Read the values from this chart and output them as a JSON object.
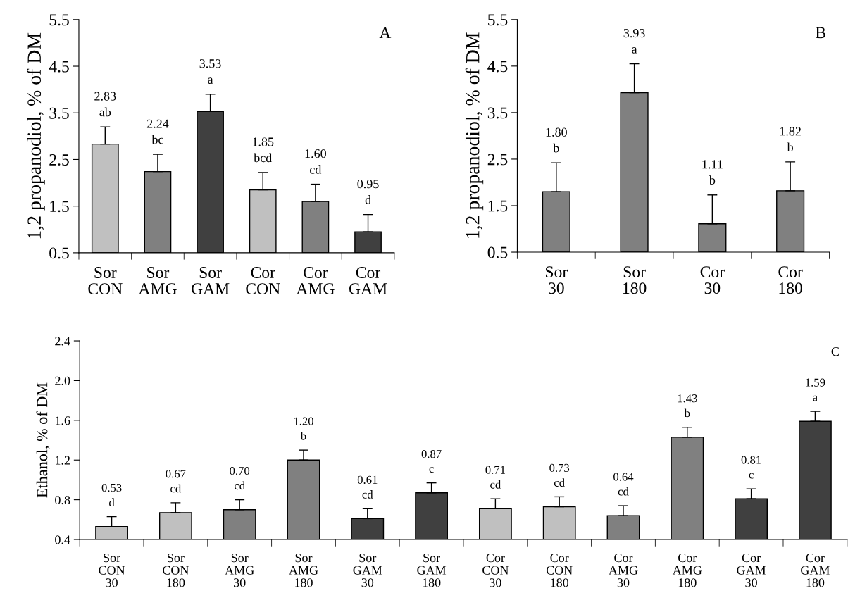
{
  "chart_data": [
    {
      "type": "bar",
      "title": "A",
      "ylabel": "1,2 propanodiol, % of DM",
      "categories": [
        "Sor\nCON",
        "Sor\nAMG",
        "Sor\nGAM",
        "Cor\nCON",
        "Cor\nAMG",
        "Cor\nGAM"
      ],
      "values": [
        2.83,
        2.24,
        3.53,
        1.85,
        1.6,
        0.95
      ],
      "colors": [
        "#c0c0c0",
        "#808080",
        "#404040",
        "#c0c0c0",
        "#808080",
        "#404040"
      ],
      "errors": [
        [
          2.83,
          3.2
        ],
        [
          2.24,
          2.61
        ],
        [
          3.53,
          3.9
        ],
        [
          1.85,
          2.22
        ],
        [
          1.6,
          1.97
        ],
        [
          0.95,
          1.32
        ]
      ],
      "value_labels": [
        "2.83\nab",
        "2.24\nbc",
        "3.53\na",
        "1.85\nbcd",
        "1.60\ncd",
        "0.95\nd"
      ],
      "ylim": [
        0.5,
        5.5
      ],
      "yticks": [
        0.5,
        1.5,
        2.5,
        3.5,
        4.5,
        5.5
      ],
      "grid": false,
      "legend": false
    },
    {
      "type": "bar",
      "title": "B",
      "ylabel": "1,2 propanodiol, % of DM",
      "categories": [
        "Sor\n30",
        "Sor\n180",
        "Cor\n30",
        "Cor\n180"
      ],
      "values": [
        1.8,
        3.93,
        1.11,
        1.82
      ],
      "colors": [
        "#808080",
        "#808080",
        "#808080",
        "#808080"
      ],
      "errors": [
        [
          1.8,
          2.42
        ],
        [
          3.93,
          4.55
        ],
        [
          1.11,
          1.73
        ],
        [
          1.82,
          2.44
        ]
      ],
      "value_labels": [
        "1.80\nb",
        "3.93\na",
        "1.11\nb",
        "1.82\nb"
      ],
      "ylim": [
        0.5,
        5.5
      ],
      "yticks": [
        0.5,
        1.5,
        2.5,
        3.5,
        4.5,
        5.5
      ],
      "grid": false,
      "legend": false
    },
    {
      "type": "bar",
      "title": "C",
      "ylabel": "Ethanol, % of DM",
      "categories": [
        "Sor\nCON\n30",
        "Sor\nCON\n180",
        "Sor\nAMG\n30",
        "Sor\nAMG\n180",
        "Sor\nGAM\n30",
        "Sor\nGAM\n180",
        "Cor\nCON\n30",
        "Cor\nCON\n180",
        "Cor\nAMG\n30",
        "Cor\nAMG\n180",
        "Cor\nGAM\n30",
        "Cor\nGAM\n180"
      ],
      "values": [
        0.53,
        0.67,
        0.7,
        1.2,
        0.61,
        0.87,
        0.71,
        0.73,
        0.64,
        1.43,
        0.81,
        1.59
      ],
      "colors": [
        "#c0c0c0",
        "#c0c0c0",
        "#808080",
        "#808080",
        "#404040",
        "#404040",
        "#c0c0c0",
        "#c0c0c0",
        "#808080",
        "#808080",
        "#404040",
        "#404040"
      ],
      "errors": [
        [
          0.53,
          0.63
        ],
        [
          0.67,
          0.77
        ],
        [
          0.7,
          0.8
        ],
        [
          1.2,
          1.3
        ],
        [
          0.61,
          0.71
        ],
        [
          0.87,
          0.97
        ],
        [
          0.71,
          0.81
        ],
        [
          0.73,
          0.83
        ],
        [
          0.64,
          0.74
        ],
        [
          1.43,
          1.53
        ],
        [
          0.81,
          0.91
        ],
        [
          1.59,
          1.69
        ]
      ],
      "value_labels": [
        "0.53\nd",
        "0.67\ncd",
        "0.70\ncd",
        "1.20\nb",
        "0.61\ncd",
        "0.87\nc",
        "0.71\ncd",
        "0.73\ncd",
        "0.64\ncd",
        "1.43\nb",
        "0.81\nc",
        "1.59\na"
      ],
      "ylim": [
        0.4,
        2.4
      ],
      "yticks": [
        0.4,
        0.8,
        1.2,
        1.6,
        {
          "value": 2.0,
          "label": "2.0"
        },
        2.4
      ],
      "grid": false,
      "legend": false
    }
  ]
}
